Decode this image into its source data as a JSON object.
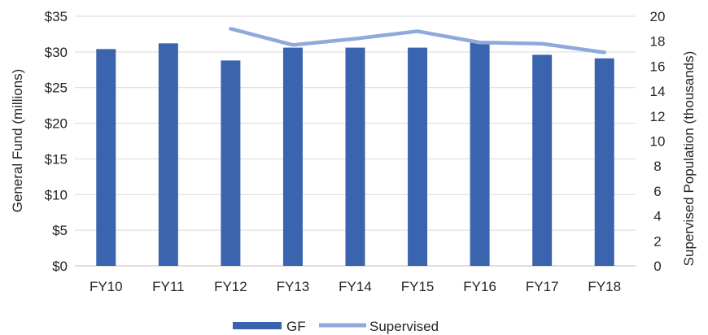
{
  "chart_data": {
    "type": "bar",
    "categories": [
      "FY10",
      "FY11",
      "FY12",
      "FY13",
      "FY14",
      "FY15",
      "FY16",
      "FY17",
      "FY18"
    ],
    "series": [
      {
        "name": "GF",
        "kind": "bar",
        "axis": "left",
        "color": "#3a64ad",
        "values": [
          30.4,
          31.2,
          28.8,
          30.6,
          30.6,
          30.6,
          31.3,
          29.6,
          29.1
        ]
      },
      {
        "name": "Supervised",
        "kind": "line",
        "axis": "right",
        "color": "#8ea9db",
        "values": [
          null,
          null,
          19.0,
          17.7,
          18.2,
          18.8,
          17.9,
          17.8,
          17.1
        ]
      }
    ],
    "ylabel": "General Fund (millions)",
    "y2label": "Supervised Population (thousands)",
    "ylim": [
      0,
      35
    ],
    "y2lim": [
      0,
      20
    ],
    "yticks": [
      "$0",
      "$5",
      "$10",
      "$15",
      "$20",
      "$25",
      "$30",
      "$35"
    ],
    "y2ticks": [
      "0",
      "2",
      "4",
      "6",
      "8",
      "10",
      "12",
      "14",
      "16",
      "18",
      "20"
    ],
    "grid": true,
    "legend": "bottom-center"
  }
}
